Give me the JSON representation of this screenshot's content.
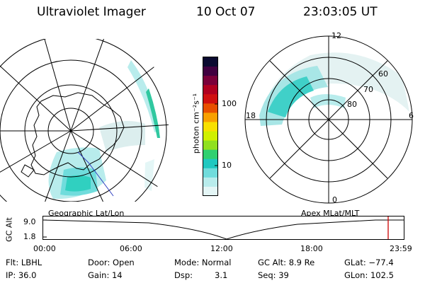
{
  "header": {
    "instrument": "Ultraviolet Imager",
    "date": "10 Oct 07",
    "time": "23:03:05 UT"
  },
  "colorbar": {
    "label": "photon cm⁻²s⁻¹",
    "ticks": [
      "100",
      "10"
    ],
    "colors": [
      "#0a0a30",
      "#400040",
      "#7a003a",
      "#b00020",
      "#d01010",
      "#e85000",
      "#f8a000",
      "#f8e000",
      "#d0f000",
      "#90e020",
      "#30d070",
      "#20c8c0",
      "#70dcdc",
      "#b8ecec",
      "#e4f6f6"
    ]
  },
  "left_panel": {
    "caption": "Geographic Lat/Lon"
  },
  "right_panel": {
    "caption": "Apex MLat/MLT",
    "lat_labels": [
      "60",
      "70",
      "80"
    ],
    "mlt_labels": {
      "top": "12",
      "left": "18",
      "right": "6",
      "bottom": "0"
    }
  },
  "timeline": {
    "axis_title": "GC Alt",
    "y_ticks": [
      "9.0",
      "1.8"
    ],
    "x_ticks": [
      "00:00",
      "06:00",
      "12:00",
      "18:00",
      "23:59"
    ],
    "marker_color": "#cc0000"
  },
  "footer": {
    "flt": "Flt: LBHL",
    "ip": "IP: 36.0",
    "door": "Door: Open",
    "gain": "Gain: 14",
    "mode": "Mode: Normal",
    "dsp_label": "Dsp:",
    "dsp_value": "3.1",
    "gc_alt": "GC Alt: 8.9 Re",
    "seq": "Seq: 39",
    "glat": "GLat: −77.4",
    "glon": "GLon: 102.5"
  }
}
